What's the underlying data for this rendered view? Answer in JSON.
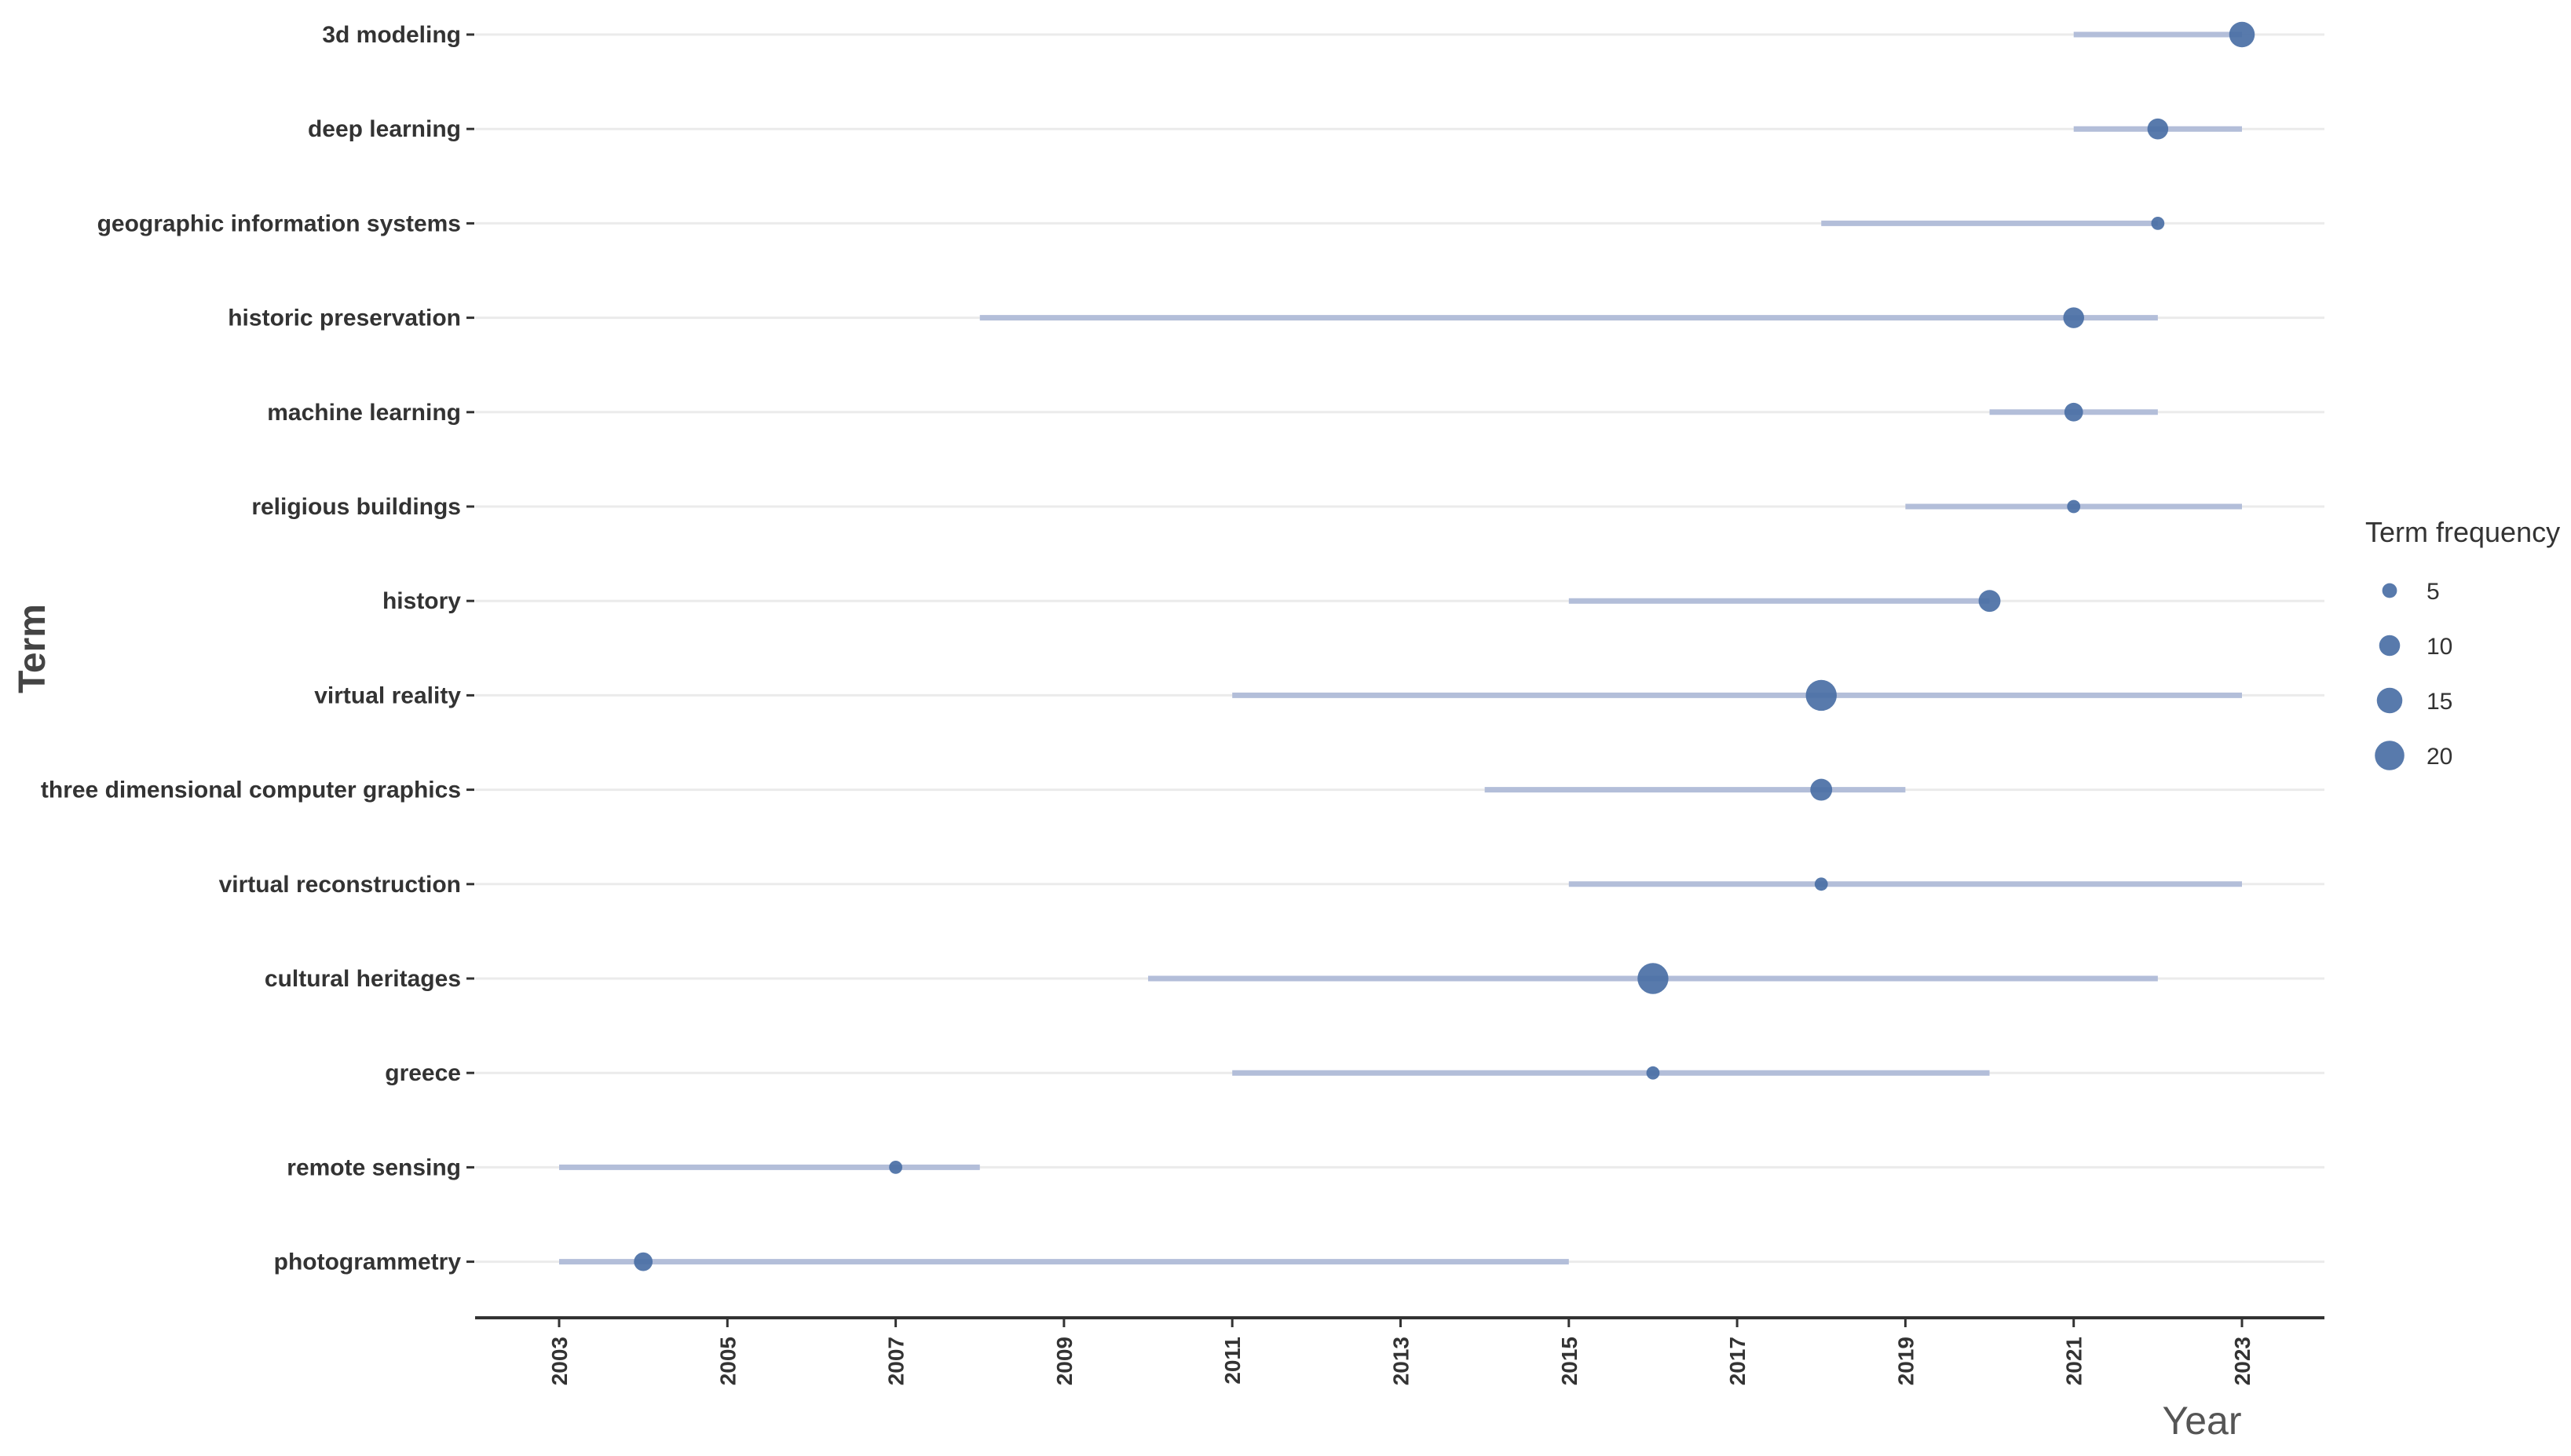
{
  "chart_data": {
    "type": "scatter",
    "subtype": "trend-topics-range",
    "xlabel": "Year",
    "ylabel": "Term",
    "xlim": [
      2002.3,
      2023.9
    ],
    "x_ticks": [
      2003,
      2005,
      2007,
      2009,
      2011,
      2013,
      2015,
      2017,
      2019,
      2021,
      2023
    ],
    "x_tick_labels": [
      "2003",
      "2005",
      "2007",
      "2009",
      "2011",
      "2013",
      "2015",
      "2017",
      "2019",
      "2021",
      "2023"
    ],
    "terms": [
      {
        "term": "3d modeling",
        "start": 2021,
        "end": 2023,
        "median": 2023,
        "frequency": 15
      },
      {
        "term": "deep learning",
        "start": 2021,
        "end": 2023,
        "median": 2022,
        "frequency": 10
      },
      {
        "term": "geographic information systems",
        "start": 2018,
        "end": 2022,
        "median": 2022,
        "frequency": 4
      },
      {
        "term": "historic preservation",
        "start": 2008,
        "end": 2022,
        "median": 2021,
        "frequency": 10
      },
      {
        "term": "machine learning",
        "start": 2020,
        "end": 2022,
        "median": 2021,
        "frequency": 8
      },
      {
        "term": "religious buildings",
        "start": 2019,
        "end": 2023,
        "median": 2021,
        "frequency": 4
      },
      {
        "term": "history",
        "start": 2015,
        "end": 2020,
        "median": 2020,
        "frequency": 11
      },
      {
        "term": "virtual reality",
        "start": 2011,
        "end": 2023,
        "median": 2018,
        "frequency": 22
      },
      {
        "term": "three dimensional computer graphics",
        "start": 2014,
        "end": 2019,
        "median": 2018,
        "frequency": 11
      },
      {
        "term": "virtual reconstruction",
        "start": 2015,
        "end": 2023,
        "median": 2018,
        "frequency": 4
      },
      {
        "term": "cultural heritages",
        "start": 2010,
        "end": 2022,
        "median": 2016,
        "frequency": 22
      },
      {
        "term": "greece",
        "start": 2011,
        "end": 2020,
        "median": 2016,
        "frequency": 4
      },
      {
        "term": "remote sensing",
        "start": 2003,
        "end": 2008,
        "median": 2007,
        "frequency": 4
      },
      {
        "term": "photogrammetry",
        "start": 2003,
        "end": 2015,
        "median": 2004,
        "frequency": 8
      }
    ],
    "legend": {
      "title": "Term frequency",
      "placement": "right",
      "entries": [
        {
          "label": "5",
          "value": 5
        },
        {
          "label": "10",
          "value": 10
        },
        {
          "label": "15",
          "value": 15
        },
        {
          "label": "20",
          "value": 20
        }
      ]
    },
    "grid": "horizontal",
    "colors": {
      "point": "#4a6fa5",
      "segment": "#b3bed9",
      "grid": "#ebebeb",
      "axis": "#333333",
      "text": "#333333"
    }
  }
}
